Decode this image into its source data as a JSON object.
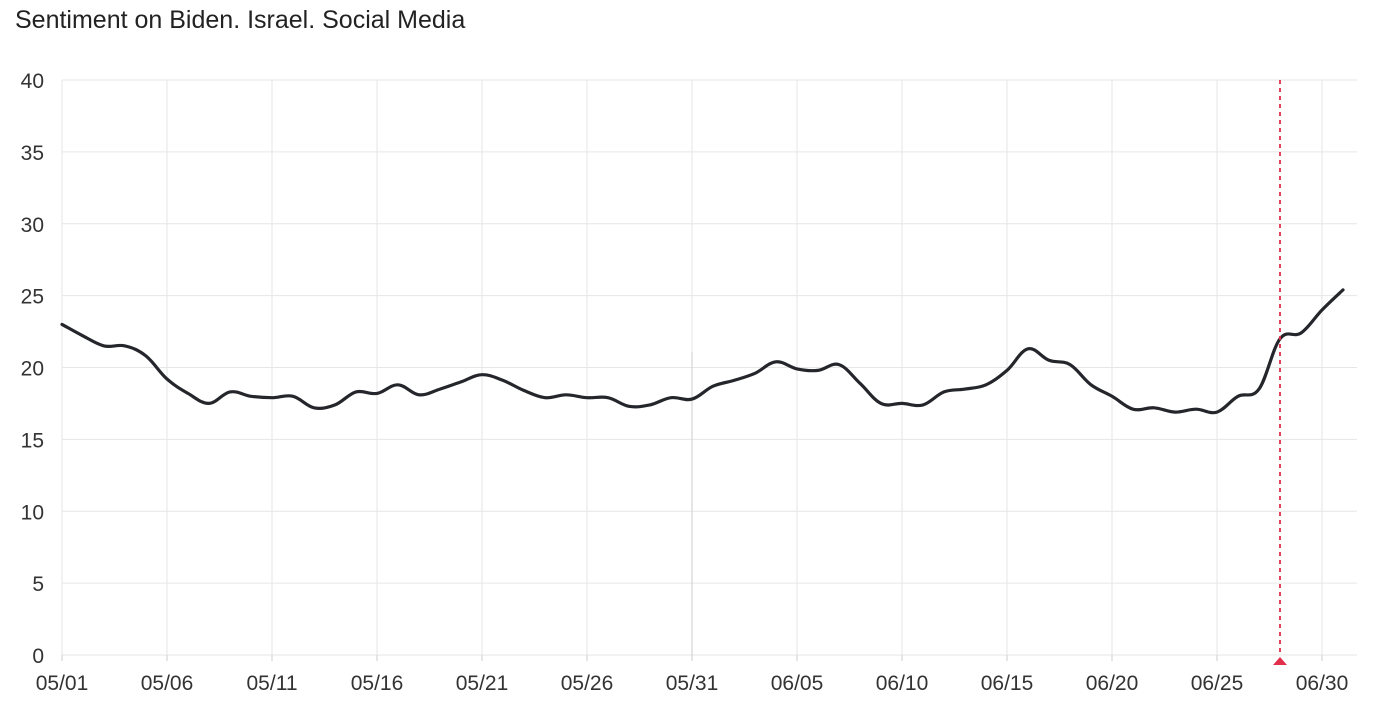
{
  "title": "Sentiment on Biden. Israel. Social Media",
  "colors": {
    "line": "#24262b",
    "grid": "#e6e6e6",
    "axis": "#cccccc",
    "marker": "#e0304a",
    "cursor_line": "#d4d4d4"
  },
  "chart_data": {
    "type": "line",
    "title": "Sentiment on Biden. Israel. Social Media",
    "xlabel": "",
    "ylabel": "",
    "ylim": [
      0,
      40
    ],
    "y_ticks": [
      "0",
      "5",
      "10",
      "15",
      "20",
      "25",
      "30",
      "35",
      "40"
    ],
    "x_tick_labels": [
      "05/01",
      "05/06",
      "05/11",
      "05/16",
      "05/21",
      "05/26",
      "05/31",
      "06/05",
      "06/10",
      "06/15",
      "06/20",
      "06/25",
      "06/30"
    ],
    "grid": true,
    "legend": "none",
    "x": [
      "05/01",
      "05/02",
      "05/03",
      "05/04",
      "05/05",
      "05/06",
      "05/07",
      "05/08",
      "05/09",
      "05/10",
      "05/11",
      "05/12",
      "05/13",
      "05/14",
      "05/15",
      "05/16",
      "05/17",
      "05/18",
      "05/19",
      "05/20",
      "05/21",
      "05/22",
      "05/23",
      "05/24",
      "05/25",
      "05/26",
      "05/27",
      "05/28",
      "05/29",
      "05/30",
      "05/31",
      "06/01",
      "06/02",
      "06/03",
      "06/04",
      "06/05",
      "06/06",
      "06/07",
      "06/08",
      "06/09",
      "06/10",
      "06/11",
      "06/12",
      "06/13",
      "06/14",
      "06/15",
      "06/16",
      "06/17",
      "06/18",
      "06/19",
      "06/20",
      "06/21",
      "06/22",
      "06/23",
      "06/24",
      "06/25",
      "06/26",
      "06/27",
      "06/28",
      "06/29",
      "06/30",
      "07/01"
    ],
    "series": [
      {
        "values": [
          23.0,
          22.2,
          21.5,
          21.5,
          20.8,
          19.2,
          18.2,
          17.5,
          18.3,
          18.0,
          17.9,
          18.0,
          17.2,
          17.4,
          18.3,
          18.2,
          18.8,
          18.1,
          18.5,
          19.0,
          19.5,
          19.1,
          18.4,
          17.9,
          18.1,
          17.9,
          17.9,
          17.3,
          17.4,
          17.9,
          17.8,
          18.7,
          19.1,
          19.6,
          20.4,
          19.9,
          19.8,
          20.2,
          18.9,
          17.5,
          17.5,
          17.4,
          18.3,
          18.5,
          18.8,
          19.8,
          21.3,
          20.5,
          20.2,
          18.8,
          18.0,
          17.1,
          17.2,
          16.9,
          17.1,
          16.9,
          18.0,
          18.5,
          22.0,
          22.4,
          24.0,
          25.4
        ]
      }
    ],
    "marker": {
      "x": "06/28",
      "style": "dashed vertical line with triangle"
    }
  }
}
